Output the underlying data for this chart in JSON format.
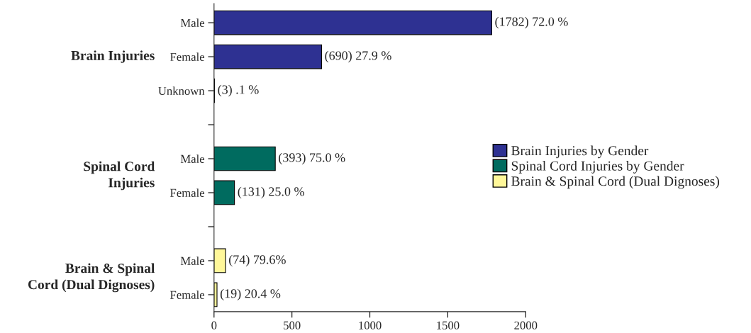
{
  "chart_data": {
    "type": "bar",
    "orientation": "horizontal",
    "categories": [
      "Male",
      "Female",
      "Unknown",
      null,
      "Male",
      "Female",
      null,
      "Male",
      "Female"
    ],
    "series": [
      {
        "name": "Brain Injuries by Gender",
        "color": "#2e3192",
        "values": [
          1782,
          690,
          3,
          null,
          null,
          null,
          null,
          null,
          null
        ],
        "value_labels": [
          "(1782) 72.0 %",
          "(690) 27.9 %",
          "(3) .1 %",
          null,
          null,
          null,
          null,
          null,
          null
        ]
      },
      {
        "name": "Spinal Cord Injuries by Gender",
        "color": "#006b5f",
        "values": [
          null,
          null,
          null,
          null,
          393,
          131,
          null,
          null,
          null
        ],
        "value_labels": [
          null,
          null,
          null,
          null,
          "(393) 75.0 %",
          "(131) 25.0 %",
          null,
          null,
          null
        ]
      },
      {
        "name": "Brain & Spinal Cord (Dual Dignoses)",
        "color": "#fff799",
        "values": [
          null,
          null,
          null,
          null,
          null,
          null,
          null,
          74,
          19
        ],
        "value_labels": [
          null,
          null,
          null,
          null,
          null,
          null,
          null,
          "(74) 79.6%",
          "(19) 20.4 %"
        ]
      }
    ],
    "annotations": [
      "Brain Injuries",
      "Spinal Cord\nInjuries",
      "Brain & Spinal\nCord (Dual Dignoses)"
    ],
    "xlim": [
      0,
      2000
    ],
    "xticks": [
      0,
      500,
      1000,
      1500,
      2000
    ],
    "legend": "right",
    "grid": false
  }
}
